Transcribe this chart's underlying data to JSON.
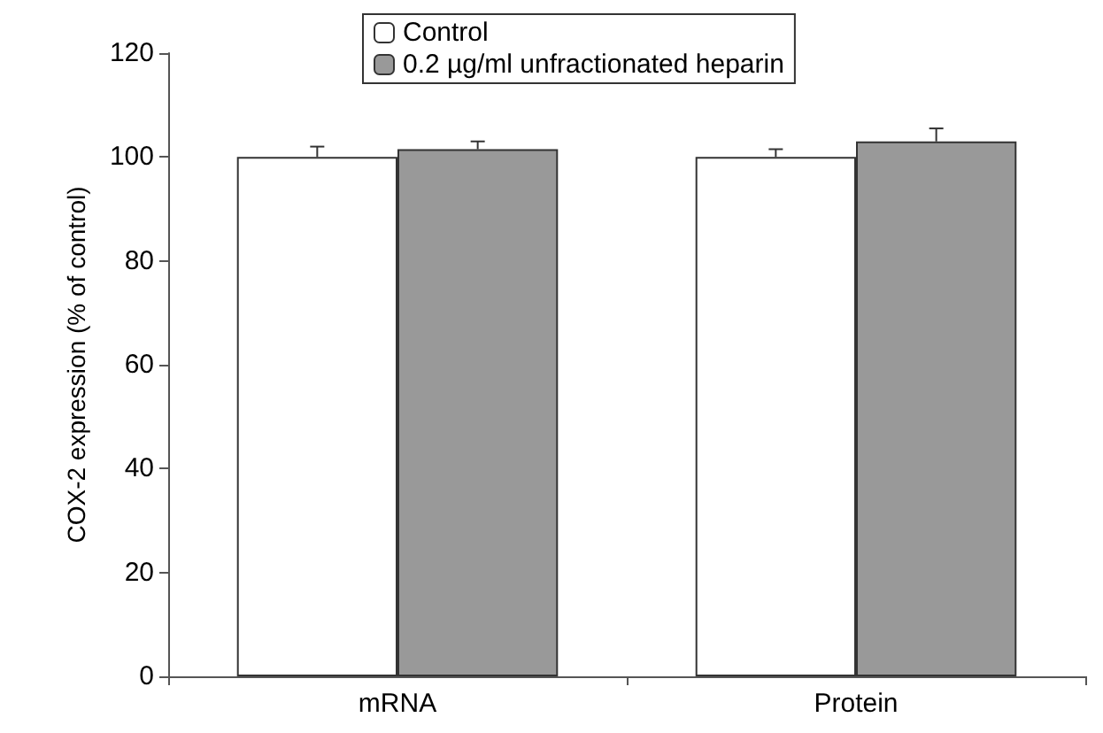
{
  "chart_data": {
    "type": "bar",
    "ylabel": "COX-2 expression (% of control)",
    "categories": [
      "mRNA",
      "Protein"
    ],
    "series": [
      {
        "name": "Control",
        "color": "#ffffff",
        "values": [
          100,
          100
        ],
        "errors": [
          2,
          1.5
        ]
      },
      {
        "name": "0.2 µg/ml unfractionated heparin",
        "color": "#999999",
        "values": [
          101.5,
          103
        ],
        "errors": [
          1.5,
          2.5
        ]
      }
    ],
    "ylim": [
      0,
      120
    ],
    "yticks": [
      0,
      20,
      40,
      60,
      80,
      100,
      120
    ],
    "grid": false,
    "legend": "top"
  }
}
